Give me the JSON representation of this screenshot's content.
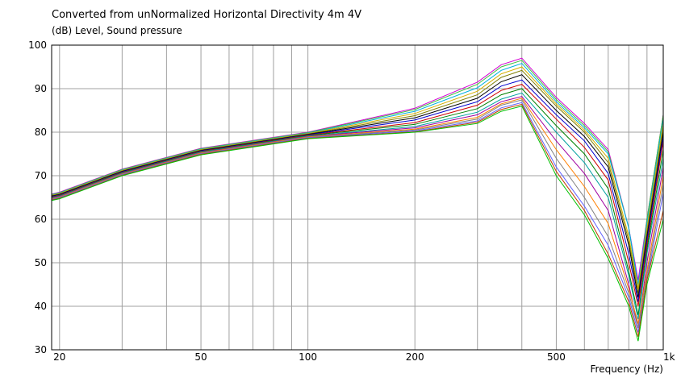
{
  "chart_data": {
    "type": "line",
    "title": "Converted from unNormalized Horizontal Directivity 4m 4V",
    "ylabel": "(dB)  Level, Sound pressure",
    "xlabel": "Frequency  (Hz)",
    "x_scale": "log",
    "xlim": [
      19,
      1000
    ],
    "ylim": [
      30,
      100
    ],
    "grid": true,
    "x_ticks": [
      20,
      30,
      40,
      50,
      60,
      70,
      80,
      90,
      100,
      200,
      300,
      400,
      500,
      600,
      700,
      800,
      900,
      1000
    ],
    "x_tick_labels": [
      {
        "value": 20,
        "label": "20"
      },
      {
        "value": 50,
        "label": "50"
      },
      {
        "value": 100,
        "label": "100"
      },
      {
        "value": 200,
        "label": "200"
      },
      {
        "value": 500,
        "label": "500"
      },
      {
        "value": 1000,
        "label": "1k"
      }
    ],
    "y_ticks": [
      30,
      40,
      50,
      60,
      70,
      80,
      90,
      100
    ],
    "y_tick_labels": [
      "30",
      "40",
      "50",
      "60",
      "70",
      "80",
      "90",
      "100"
    ],
    "x": [
      19,
      20,
      30,
      50,
      100,
      200,
      300,
      350,
      400,
      500,
      600,
      700,
      800,
      850,
      900,
      1000
    ],
    "series": [
      {
        "color": "#d400d4",
        "values": [
          65.8,
          66.2,
          71.5,
          76.3,
          80.0,
          85.5,
          91.5,
          95.5,
          97.0,
          88.0,
          82.0,
          76.0,
          58.0,
          46.0,
          60.0,
          84.0
        ]
      },
      {
        "color": "#3fbf3f",
        "values": [
          65.7,
          66.1,
          71.4,
          76.2,
          79.9,
          85.2,
          91.0,
          95.0,
          96.5,
          87.5,
          81.5,
          75.5,
          58.0,
          44.0,
          60.0,
          84.0
        ]
      },
      {
        "color": "#00b0e0",
        "values": [
          65.6,
          66.0,
          71.3,
          76.1,
          79.8,
          84.8,
          90.2,
          94.2,
          95.8,
          87.0,
          81.0,
          75.0,
          58.0,
          45.0,
          59.0,
          83.0
        ]
      },
      {
        "color": "#d4b000",
        "values": [
          65.5,
          65.9,
          71.2,
          76.0,
          79.7,
          84.3,
          89.4,
          93.4,
          95.0,
          86.5,
          80.5,
          74.0,
          56.0,
          44.0,
          58.0,
          82.0
        ]
      },
      {
        "color": "#7f7f00",
        "values": [
          65.4,
          65.8,
          71.1,
          75.9,
          79.6,
          83.8,
          88.6,
          92.6,
          94.2,
          86.0,
          80.0,
          73.0,
          55.0,
          43.0,
          57.0,
          81.0
        ]
      },
      {
        "color": "#000000",
        "values": [
          65.3,
          65.7,
          71.0,
          75.8,
          79.5,
          83.3,
          87.8,
          91.6,
          93.2,
          85.0,
          79.0,
          72.0,
          54.0,
          42.0,
          56.0,
          80.0
        ]
      },
      {
        "color": "#0000d0",
        "values": [
          65.2,
          65.6,
          70.9,
          75.7,
          79.4,
          82.8,
          87.0,
          90.6,
          92.0,
          84.0,
          78.0,
          70.5,
          52.0,
          41.0,
          55.0,
          79.0
        ]
      },
      {
        "color": "#d00000",
        "values": [
          65.1,
          65.5,
          70.8,
          75.6,
          79.3,
          82.2,
          86.2,
          89.6,
          91.0,
          83.0,
          76.5,
          69.0,
          50.0,
          40.0,
          54.0,
          78.0
        ]
      },
      {
        "color": "#008000",
        "values": [
          65.0,
          65.4,
          70.7,
          75.5,
          79.2,
          81.8,
          85.4,
          88.6,
          90.0,
          81.5,
          75.0,
          67.0,
          48.0,
          38.0,
          53.0,
          76.0
        ]
      },
      {
        "color": "#00a0a0",
        "values": [
          64.9,
          65.3,
          70.6,
          75.4,
          79.1,
          81.3,
          84.6,
          87.6,
          89.0,
          80.0,
          73.0,
          65.0,
          47.0,
          37.0,
          52.0,
          74.0
        ]
      },
      {
        "color": "#a000a0",
        "values": [
          64.8,
          65.2,
          70.5,
          75.3,
          79.0,
          81.0,
          84.0,
          87.0,
          88.2,
          78.0,
          70.5,
          62.0,
          45.0,
          35.0,
          50.0,
          72.0
        ]
      },
      {
        "color": "#ff8000",
        "values": [
          64.7,
          65.1,
          70.4,
          75.2,
          78.9,
          80.7,
          83.4,
          86.5,
          87.8,
          76.0,
          67.5,
          59.0,
          44.0,
          36.0,
          48.0,
          70.0
        ]
      },
      {
        "color": "#808080",
        "values": [
          64.6,
          65.0,
          70.3,
          75.1,
          78.8,
          80.5,
          83.0,
          86.2,
          87.4,
          74.0,
          65.0,
          56.0,
          43.0,
          35.0,
          47.0,
          68.0
        ]
      },
      {
        "color": "#6060ff",
        "values": [
          64.5,
          64.9,
          70.2,
          75.0,
          78.7,
          80.3,
          82.6,
          85.6,
          86.8,
          72.0,
          63.0,
          54.0,
          42.0,
          34.0,
          46.0,
          66.0
        ]
      },
      {
        "color": "#c04000",
        "values": [
          64.4,
          64.8,
          70.1,
          74.9,
          78.6,
          80.1,
          82.3,
          85.2,
          86.4,
          71.0,
          62.0,
          52.0,
          41.0,
          33.0,
          46.0,
          62.0
        ]
      },
      {
        "color": "#00c000",
        "values": [
          64.3,
          64.7,
          70.0,
          74.8,
          78.5,
          80.0,
          82.0,
          84.8,
          86.0,
          70.0,
          61.0,
          51.0,
          40.0,
          32.0,
          45.0,
          60.0
        ]
      }
    ]
  }
}
